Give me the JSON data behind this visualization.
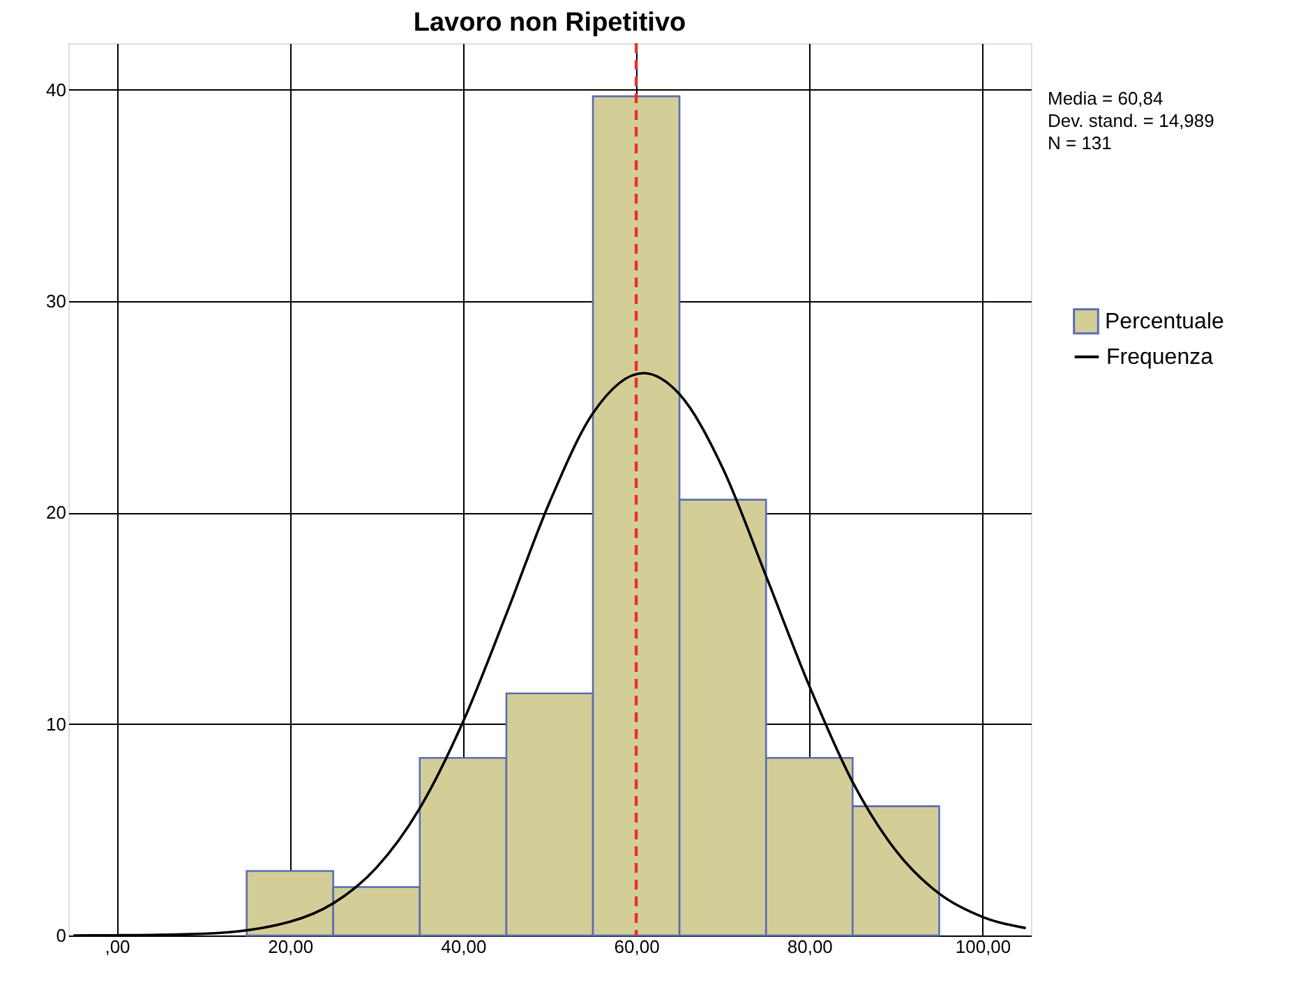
{
  "chart_data": {
    "type": "histogram",
    "title": "Lavoro non Ripetitivo",
    "bins": [
      15,
      25,
      35,
      45,
      55,
      65,
      75,
      85,
      95
    ],
    "series": [
      {
        "name": "Percentuale",
        "color": "#d3ce97",
        "values": [
          3.05,
          2.29,
          8.4,
          11.45,
          39.69,
          20.61,
          8.4,
          6.11
        ]
      },
      {
        "name": "Frequenza",
        "type": "line",
        "color": "#000000",
        "x": [
          -5,
          0,
          10,
          20,
          25,
          30,
          35,
          40,
          45,
          50,
          55,
          60.84,
          65,
          70,
          75,
          80,
          85,
          90,
          95,
          100,
          105
        ],
        "values": [
          0.0,
          0.01,
          0.08,
          0.65,
          1.52,
          3.21,
          6.02,
          10.11,
          15.2,
          20.5,
          24.7,
          26.6,
          25.6,
          22.1,
          17.0,
          11.8,
          7.26,
          4.01,
          1.98,
          0.88,
          0.35
        ]
      }
    ],
    "xlim": [
      -5.6,
      105.6
    ],
    "ylim": [
      0,
      42.2
    ],
    "xticks": [
      {
        "value": 0,
        "label": ",00"
      },
      {
        "value": 20,
        "label": "20,00"
      },
      {
        "value": 40,
        "label": "40,00"
      },
      {
        "value": 60,
        "label": "60,00"
      },
      {
        "value": 80,
        "label": "80,00"
      },
      {
        "value": 100,
        "label": "100,00"
      }
    ],
    "yticks": [
      0,
      10,
      20,
      30,
      40
    ],
    "ref_lines": [
      {
        "axis": "x",
        "value": 60,
        "color": "#e8312f",
        "line_style": "dashed"
      }
    ],
    "annotations": [
      "Media = 60,84",
      "Dev. stand. = 14,989",
      "N = 131"
    ],
    "grid": true,
    "legend": "right"
  }
}
